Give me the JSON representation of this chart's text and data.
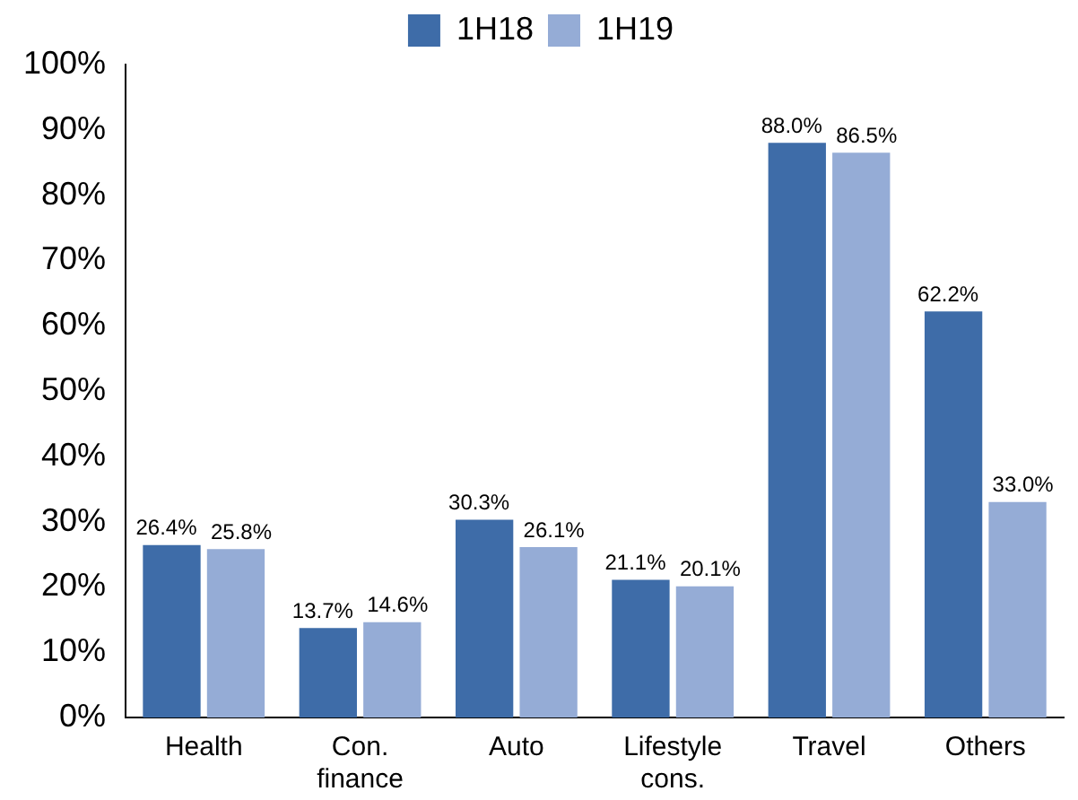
{
  "chart_data": {
    "type": "bar",
    "categories": [
      "Health",
      "Con. finance",
      "Auto",
      "Lifestyle cons.",
      "Travel",
      "Others"
    ],
    "series": [
      {
        "name": "1H18",
        "color": "#3e6ca8",
        "values": [
          26.4,
          13.7,
          30.3,
          21.1,
          88.0,
          62.2
        ],
        "value_labels": [
          "26.4%",
          "13.7%",
          "30.3%",
          "21.1%",
          "88.0%",
          "62.2%"
        ]
      },
      {
        "name": "1H19",
        "color": "#95acd6",
        "values": [
          25.8,
          14.6,
          26.1,
          20.1,
          86.5,
          33.0
        ],
        "value_labels": [
          "25.8%",
          "14.6%",
          "26.1%",
          "20.1%",
          "86.5%",
          "33.0%"
        ]
      }
    ],
    "ylim": [
      0,
      100
    ],
    "yticks": [
      {
        "value": 0,
        "label": "0%"
      },
      {
        "value": 10,
        "label": "10%"
      },
      {
        "value": 20,
        "label": "20%"
      },
      {
        "value": 30,
        "label": "30%"
      },
      {
        "value": 40,
        "label": "40%"
      },
      {
        "value": 50,
        "label": "50%"
      },
      {
        "value": 60,
        "label": "60%"
      },
      {
        "value": 70,
        "label": "70%"
      },
      {
        "value": 80,
        "label": "80%"
      },
      {
        "value": 90,
        "label": "90%"
      },
      {
        "value": 100,
        "label": "100%"
      }
    ],
    "grid": false,
    "legend": "top"
  }
}
